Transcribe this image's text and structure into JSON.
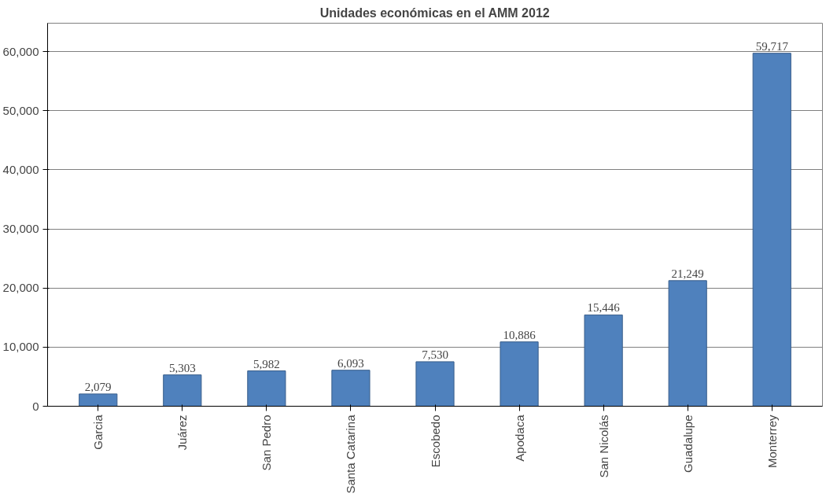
{
  "chart_data": {
    "type": "bar",
    "title": "Unidades económicas en el AMM 2012",
    "categories": [
      "Garcia",
      "Juárez",
      "San Pedro",
      "Santa Catarina",
      "Escobedo",
      "Apodaca",
      "San Nicolás",
      "Guadalupe",
      "Monterrey"
    ],
    "values": [
      2079,
      5303,
      5982,
      6093,
      7530,
      10886,
      15446,
      21249,
      59717
    ],
    "value_labels": [
      "2,079",
      "5,303",
      "5,982",
      "6,093",
      "7,530",
      "10,886",
      "15,446",
      "21,249",
      "59,717"
    ],
    "color": "#4f81bd",
    "ylim": [
      0,
      60000
    ],
    "yticks": [
      {
        "value": 0,
        "label": "0"
      },
      {
        "value": 10000,
        "label": "10,000"
      },
      {
        "value": 20000,
        "label": "20,000"
      },
      {
        "value": 30000,
        "label": "30,000"
      },
      {
        "value": 40000,
        "label": "40,000"
      },
      {
        "value": 50000,
        "label": "50,000"
      },
      {
        "value": 60000,
        "label": "60,000"
      }
    ],
    "grid": "y"
  }
}
